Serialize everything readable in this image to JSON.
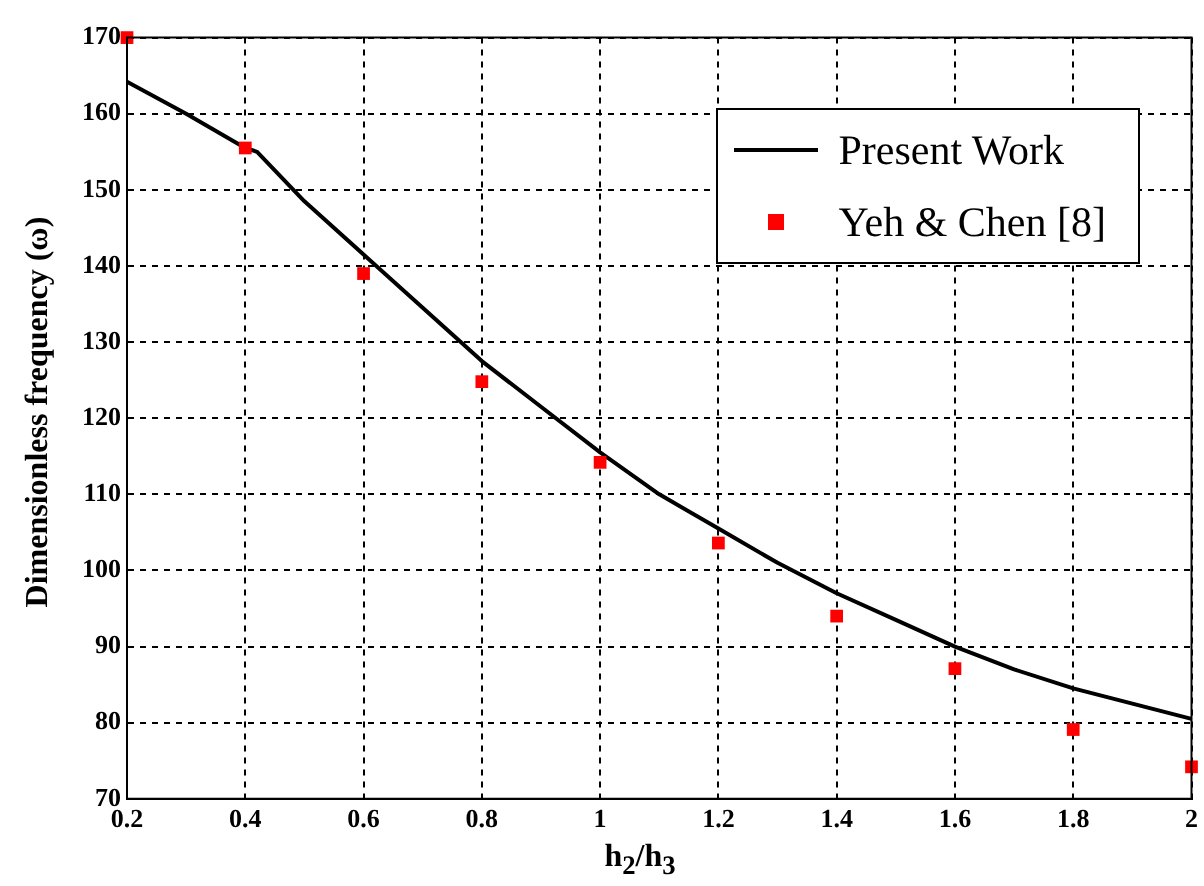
{
  "chart_data": {
    "type": "line",
    "xlabel": "h$_{2}$/h$_{3}$",
    "ylabel": "Dimensionless frequency (ω)",
    "xlim": [
      0.2,
      2
    ],
    "xticks": [
      0.2,
      0.4,
      0.6,
      0.8,
      1,
      1.2,
      1.4,
      1.6,
      1.8,
      2
    ],
    "ylim": [
      70,
      170
    ],
    "yticks": [
      70,
      80,
      90,
      100,
      110,
      120,
      130,
      140,
      150,
      160,
      170
    ],
    "grid": true,
    "legend": "top right",
    "series": [
      {
        "name": "Present Work",
        "color": "#000000",
        "marker": "none",
        "line_style": "solid",
        "x": [
          0.2,
          0.3,
          0.4,
          0.42,
          0.5,
          0.6,
          0.7,
          0.8,
          0.9,
          1.0,
          1.1,
          1.2,
          1.3,
          1.4,
          1.5,
          1.6,
          1.7,
          1.8,
          1.9,
          2.0
        ],
        "values": [
          164.2,
          160,
          155.5,
          155,
          148.5,
          141.5,
          134.5,
          127.5,
          121.5,
          115.5,
          110,
          105.5,
          101,
          97,
          93.5,
          90,
          87,
          84.5,
          82.5,
          80.5
        ]
      },
      {
        "name": "Yeh & Chen [8]",
        "type": "scatter",
        "color": "#ff0000",
        "marker": "square",
        "x": [
          0.2,
          0.4,
          0.6,
          0.8,
          1.0,
          1.2,
          1.4,
          1.6,
          1.8,
          2.0
        ],
        "values": [
          170,
          155.5,
          139,
          124.8,
          114.2,
          103.6,
          94,
          87.1,
          79.1,
          74.2
        ]
      }
    ]
  }
}
